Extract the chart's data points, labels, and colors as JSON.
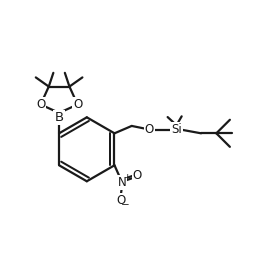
{
  "bg_color": "#ffffff",
  "line_color": "#1a1a1a",
  "line_width": 1.6,
  "font_size": 8.5,
  "fig_width": 2.72,
  "fig_height": 2.74,
  "dpi": 100,
  "xlim": [
    0,
    11
  ],
  "ylim": [
    0,
    11
  ]
}
